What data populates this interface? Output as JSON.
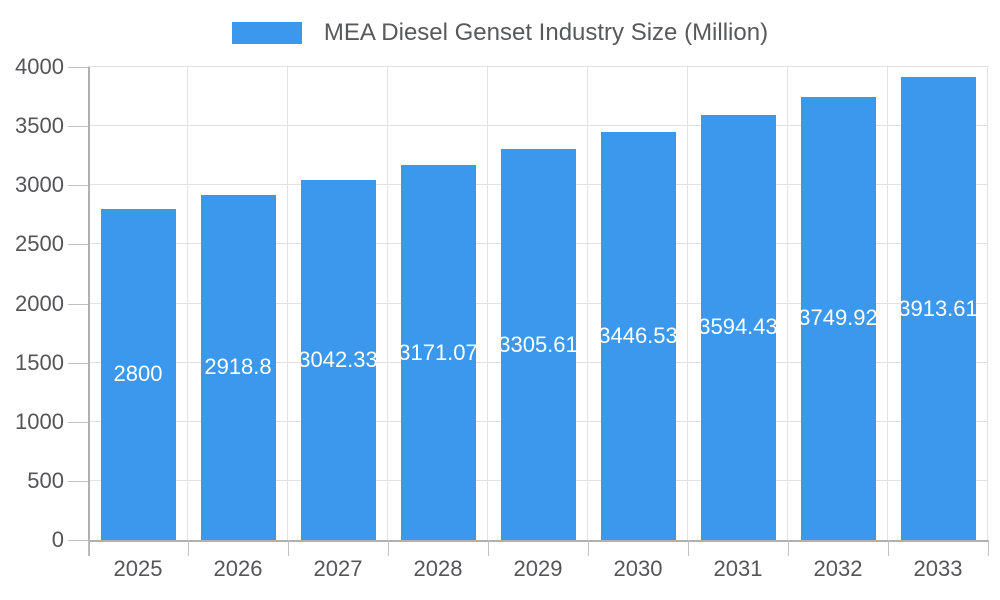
{
  "legend": {
    "series_label": "MEA Diesel Genset Industry Size (Million)",
    "swatch_icon": "blue-rect-swatch"
  },
  "colors": {
    "bar": "#3b98ec",
    "gridline": "#e2e2e2",
    "axis": "#b0b0b0",
    "tick": "#c0c0c0",
    "axis_text": "#555558",
    "bar_label_text": "#ffffff"
  },
  "chart_data": {
    "type": "bar",
    "title": "MEA Diesel Genset Industry Size (Million)",
    "categories": [
      "2025",
      "2026",
      "2027",
      "2028",
      "2029",
      "2030",
      "2031",
      "2032",
      "2033"
    ],
    "values": [
      2800,
      2918.8,
      3042.33,
      3171.07,
      3305.61,
      3446.53,
      3594.43,
      3749.92,
      3913.61
    ],
    "bar_labels": [
      "2800",
      "2918.8",
      "3042.33",
      "3171.07",
      "3305.61",
      "3446.53",
      "3594.43",
      "3749.92",
      "3913.61"
    ],
    "xlabel": "",
    "ylabel": "",
    "ylim": [
      0,
      4000
    ],
    "yticks": [
      0,
      500,
      1000,
      1500,
      2000,
      2500,
      3000,
      3500,
      4000
    ],
    "grid": true,
    "legend_position": "top"
  }
}
